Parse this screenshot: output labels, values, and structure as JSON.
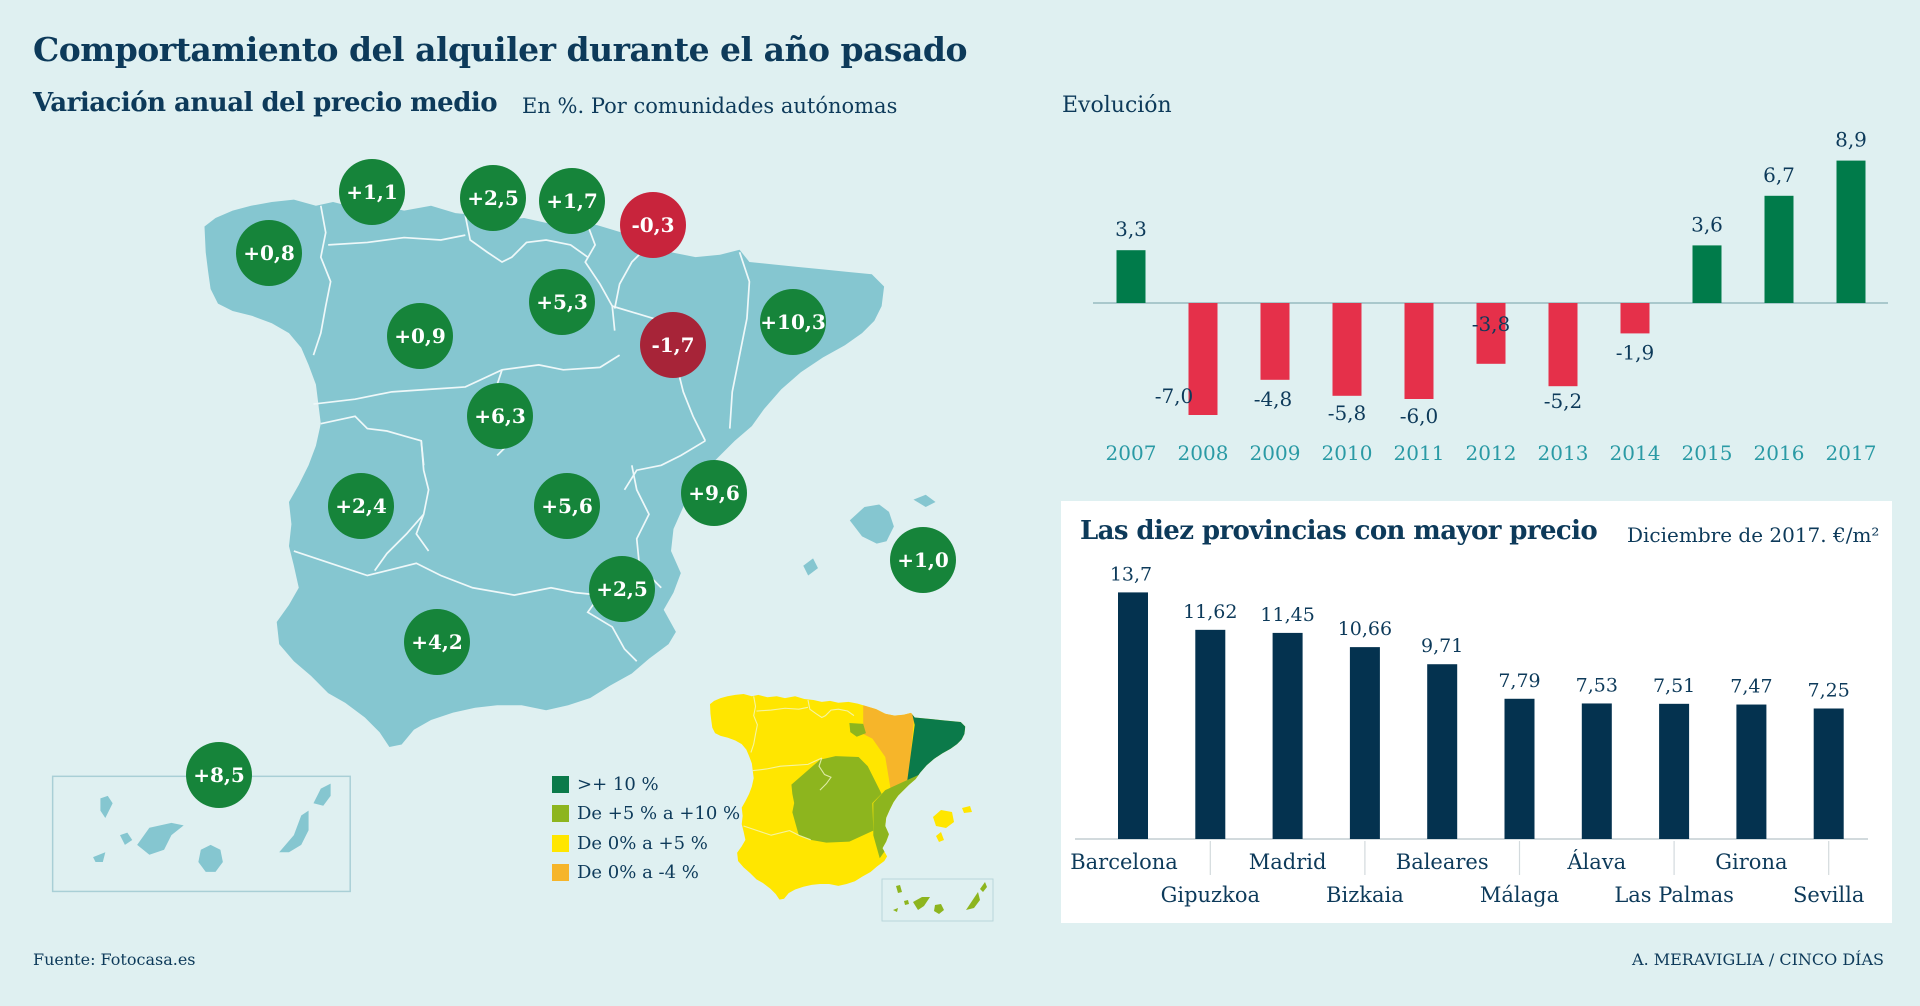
{
  "header": {
    "title": "Comportamiento del alquiler durante el año pasado"
  },
  "map_section": {
    "title": "Variación anual del precio medio",
    "subtitle": "En %. Por comunidades autónomas",
    "regions": [
      {
        "name": "Galicia",
        "value": "+0,8",
        "sign": "positive"
      },
      {
        "name": "Asturias",
        "value": "+1,1",
        "sign": "positive"
      },
      {
        "name": "Cantabria",
        "value": "+2,5",
        "sign": "positive"
      },
      {
        "name": "País Vasco",
        "value": "+1,7",
        "sign": "positive"
      },
      {
        "name": "Navarra",
        "value": "-0,3",
        "sign": "negative"
      },
      {
        "name": "La Rioja",
        "value": "+5,3",
        "sign": "positive"
      },
      {
        "name": "Cataluña",
        "value": "+10,3",
        "sign": "positive"
      },
      {
        "name": "Castilla y León",
        "value": "+0,9",
        "sign": "positive"
      },
      {
        "name": "Aragón",
        "value": "-1,7",
        "sign": "negative"
      },
      {
        "name": "Madrid",
        "value": "+6,3",
        "sign": "positive"
      },
      {
        "name": "C. Valenciana",
        "value": "+9,6",
        "sign": "positive"
      },
      {
        "name": "Extremadura",
        "value": "+2,4",
        "sign": "positive"
      },
      {
        "name": "Castilla-La Mancha",
        "value": "+5,6",
        "sign": "positive"
      },
      {
        "name": "Baleares",
        "value": "+1,0",
        "sign": "positive"
      },
      {
        "name": "Murcia",
        "value": "+2,5",
        "sign": "positive"
      },
      {
        "name": "Andalucía",
        "value": "+4,2",
        "sign": "positive"
      },
      {
        "name": "Canarias",
        "value": "+8,5",
        "sign": "positive"
      }
    ],
    "legend": [
      {
        "label": ">+ 10 %",
        "color": "#0b7a4a"
      },
      {
        "label": "De +5 % a +10 %",
        "color": "#8db51e"
      },
      {
        "label": "De 0% a +5 %",
        "color": "#ffe600"
      },
      {
        "label": "De 0% a -4 %",
        "color": "#f6b52a"
      }
    ]
  },
  "colors": {
    "background": "#dff0f1",
    "map_fill": "#85c6d0",
    "bubble_positive": "#16843a",
    "bubble_negative": "#c8243c",
    "bubble_negative_dark": "#a72438",
    "bar_positive": "#007b4a",
    "bar_negative": "#e5304a",
    "bar_navy": "#04324f",
    "year_label": "#2a9aa5",
    "text": "#0d3a5a"
  },
  "chart_data": [
    {
      "type": "bar",
      "title": "Evolución",
      "xlabel": "",
      "ylabel": "",
      "categories": [
        "2007",
        "2008",
        "2009",
        "2010",
        "2011",
        "2012",
        "2013",
        "2014",
        "2015",
        "2016",
        "2017"
      ],
      "values": [
        3.3,
        -7.0,
        -4.8,
        -5.8,
        -6.0,
        -3.8,
        -5.2,
        -1.9,
        3.6,
        6.7,
        8.9
      ],
      "value_labels": [
        "3,3",
        "-7,0",
        "-4,8",
        "-5,8",
        "-6,0",
        "-3,8",
        "-5,2",
        "-1,9",
        "3,6",
        "6,7",
        "8,9"
      ],
      "ylim": [
        -7.5,
        9.5
      ],
      "grid": false,
      "legend": "none"
    },
    {
      "type": "bar",
      "title": "Las diez provincias con mayor precio",
      "subtitle": "Diciembre de 2017. €/m²",
      "xlabel": "",
      "ylabel": "",
      "categories": [
        "Barcelona",
        "Gipuzkoa",
        "Madrid",
        "Bizkaia",
        "Baleares",
        "Málaga",
        "Álava",
        "Las Palmas",
        "Girona",
        "Sevilla"
      ],
      "values": [
        13.7,
        11.62,
        11.45,
        10.66,
        9.71,
        7.79,
        7.53,
        7.51,
        7.47,
        7.25
      ],
      "value_labels": [
        "13,7",
        "11,62",
        "11,45",
        "10,66",
        "9,71",
        "7,79",
        "7,53",
        "7,51",
        "7,47",
        "7,25"
      ],
      "ylim": [
        0,
        14
      ],
      "grid": false,
      "legend": "none"
    }
  ],
  "footer": {
    "source": "Fuente: Fotocasa.es",
    "credit": "A. MERAVIGLIA / CINCO DÍAS"
  }
}
